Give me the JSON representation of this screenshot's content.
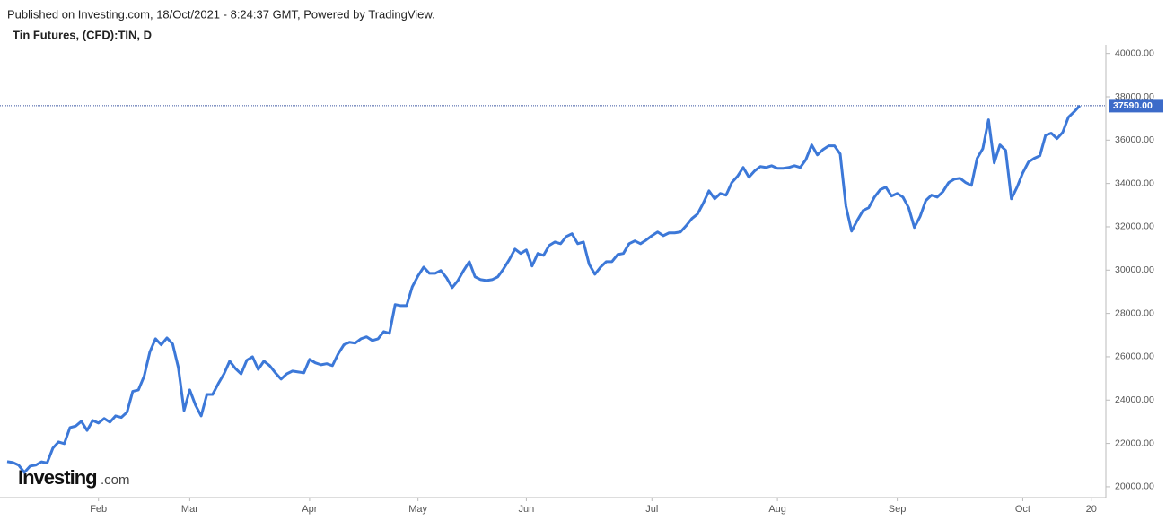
{
  "chart_data": {
    "type": "line",
    "publisher_note": "Published on Investing.com, 18/Oct/2021 - 8:24:37 GMT, Powered by TradingView.",
    "title": "Tin Futures, (CFD):TIN, D",
    "watermark": "Investing",
    "watermark_suffix": ".com",
    "color": "#3c78d8",
    "values": [
      21160,
      21120,
      21000,
      20660,
      20950,
      21000,
      21150,
      21100,
      21780,
      22070,
      21990,
      22730,
      22800,
      23020,
      22600,
      23060,
      22940,
      23150,
      22980,
      23270,
      23200,
      23440,
      24400,
      24470,
      25100,
      26220,
      26830,
      26550,
      26870,
      26590,
      25500,
      23520,
      24470,
      23770,
      23270,
      24260,
      24260,
      24760,
      25210,
      25800,
      25460,
      25210,
      25840,
      26000,
      25420,
      25800,
      25590,
      25260,
      24970,
      25210,
      25340,
      25300,
      25260,
      25880,
      25720,
      25630,
      25680,
      25590,
      26130,
      26550,
      26670,
      26630,
      26830,
      26920,
      26750,
      26830,
      27160,
      27080,
      28410,
      28360,
      28360,
      29230,
      29730,
      30140,
      29850,
      29850,
      29980,
      29650,
      29190,
      29520,
      29980,
      30390,
      29690,
      29560,
      29520,
      29560,
      29690,
      30060,
      30480,
      30970,
      30770,
      30930,
      30190,
      30770,
      30680,
      31140,
      31300,
      31220,
      31550,
      31680,
      31220,
      31300,
      30270,
      29810,
      30140,
      30390,
      30390,
      30720,
      30770,
      31220,
      31350,
      31220,
      31390,
      31590,
      31760,
      31590,
      31720,
      31720,
      31760,
      32050,
      32380,
      32590,
      33090,
      33660,
      33290,
      33540,
      33460,
      34040,
      34330,
      34740,
      34290,
      34580,
      34780,
      34740,
      34820,
      34700,
      34700,
      34740,
      34820,
      34740,
      35110,
      35780,
      35320,
      35570,
      35740,
      35740,
      35360,
      32960,
      31800,
      32300,
      32750,
      32880,
      33370,
      33710,
      33830,
      33420,
      33540,
      33370,
      32880,
      31970,
      32470,
      33210,
      33460,
      33370,
      33620,
      34040,
      34200,
      34240,
      34040,
      33910,
      35160,
      35610,
      36940,
      34950,
      35780,
      35530,
      33290,
      33830,
      34490,
      34990,
      35160,
      35280,
      36230,
      36320,
      36070,
      36360,
      37060,
      37310,
      37590
    ],
    "last_value_label": "37590.00",
    "xlim": [
      0,
      188
    ],
    "xticks": [
      {
        "value": 16,
        "label": "Feb"
      },
      {
        "value": 32,
        "label": "Mar"
      },
      {
        "value": 53,
        "label": "Apr"
      },
      {
        "value": 72,
        "label": "May"
      },
      {
        "value": 91,
        "label": "Jun"
      },
      {
        "value": 113,
        "label": "Jul"
      },
      {
        "value": 135,
        "label": "Aug"
      },
      {
        "value": 156,
        "label": "Sep"
      },
      {
        "value": 178,
        "label": "Oct"
      },
      {
        "value": 190,
        "label": "20"
      }
    ],
    "ylim": [
      19500,
      40400
    ],
    "yticks": [
      {
        "value": 20000,
        "label": "20000.00"
      },
      {
        "value": 22000,
        "label": "22000.00"
      },
      {
        "value": 24000,
        "label": "24000.00"
      },
      {
        "value": 26000,
        "label": "26000.00"
      },
      {
        "value": 28000,
        "label": "28000.00"
      },
      {
        "value": 30000,
        "label": "30000.00"
      },
      {
        "value": 32000,
        "label": "32000.00"
      },
      {
        "value": 34000,
        "label": "34000.00"
      },
      {
        "value": 36000,
        "label": "36000.00"
      },
      {
        "value": 38000,
        "label": "38000.00"
      },
      {
        "value": 40000,
        "label": "40000.00"
      }
    ],
    "grid": false
  }
}
